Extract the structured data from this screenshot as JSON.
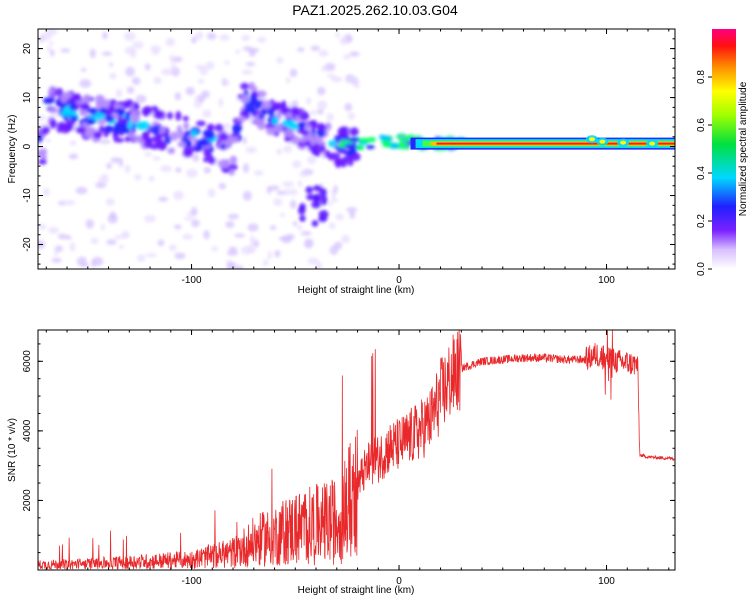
{
  "title": "PAZ1.2025.262.10.03.G04",
  "chart_data": [
    {
      "type": "heatmap",
      "xlabel": "Height of straight line (km)",
      "ylabel": "Frequency (Hz)",
      "xlim": [
        -174,
        133
      ],
      "ylim": [
        -25,
        24
      ],
      "x_ticks": [
        -100,
        0,
        100
      ],
      "y_ticks": [
        -20,
        -10,
        0,
        10,
        20
      ],
      "colorbar": {
        "label": "Normalized spectral amplitude",
        "range": [
          0,
          1
        ],
        "ticks": [
          "0.0",
          "0.2",
          "0.4",
          "0.6",
          "0.8"
        ]
      },
      "ridge": [
        {
          "x": -170,
          "f": 8
        },
        {
          "x": -150,
          "f": 6
        },
        {
          "x": -130,
          "f": 5
        },
        {
          "x": -110,
          "f": 3
        },
        {
          "x": -90,
          "f": 1
        },
        {
          "x": -80,
          "f": -2
        },
        {
          "x": -75,
          "f": 10
        },
        {
          "x": -60,
          "f": 6
        },
        {
          "x": -45,
          "f": 3
        },
        {
          "x": -30,
          "f": 0
        },
        {
          "x": -15,
          "f": 1
        },
        {
          "x": 0,
          "f": 1
        },
        {
          "x": 20,
          "f": 0.5
        },
        {
          "x": 60,
          "f": 0.5
        },
        {
          "x": 95,
          "f": 1
        },
        {
          "x": 133,
          "f": 0.5
        }
      ]
    },
    {
      "type": "line",
      "xlabel": "Height of straight line (km)",
      "ylabel": "SNR (10 * v/v)",
      "xlim": [
        -174,
        133
      ],
      "ylim": [
        0,
        6900
      ],
      "x_ticks": [
        -100,
        0,
        100
      ],
      "y_ticks": [
        2000,
        4000,
        6000
      ],
      "color": "#e8282a",
      "series": [
        {
          "x": [
            -174,
            -150,
            -120,
            -100,
            -80,
            -70,
            -60,
            -50,
            -40,
            -30,
            -25,
            -20,
            -15,
            -10,
            -5,
            0,
            5,
            10,
            15,
            20,
            25,
            30,
            40,
            50,
            60,
            70,
            80,
            90,
            95,
            100,
            105,
            110,
            115,
            116,
            120,
            133
          ],
          "y": [
            150,
            180,
            250,
            300,
            500,
            800,
            1000,
            1200,
            1300,
            1400,
            1800,
            2500,
            3000,
            3200,
            3500,
            3600,
            3800,
            4000,
            4300,
            5000,
            5500,
            5800,
            6000,
            6050,
            6100,
            6100,
            6050,
            6050,
            6200,
            6100,
            6000,
            5950,
            5900,
            3300,
            3250,
            3200
          ]
        }
      ]
    }
  ]
}
